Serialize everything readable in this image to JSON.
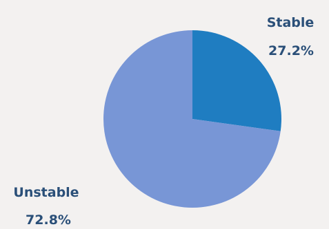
{
  "chart_data": {
    "type": "pie",
    "title": "",
    "slices": [
      {
        "label": "Stable",
        "value": 27.2,
        "value_label": "27.2%",
        "color": "#1f7dc1"
      },
      {
        "label": "Unstable",
        "value": 72.8,
        "value_label": "72.8%",
        "color": "#7896d6"
      }
    ],
    "label_color": "#2a4f78",
    "start_angle_deg": 0,
    "direction": "clockwise",
    "legend": "none"
  }
}
